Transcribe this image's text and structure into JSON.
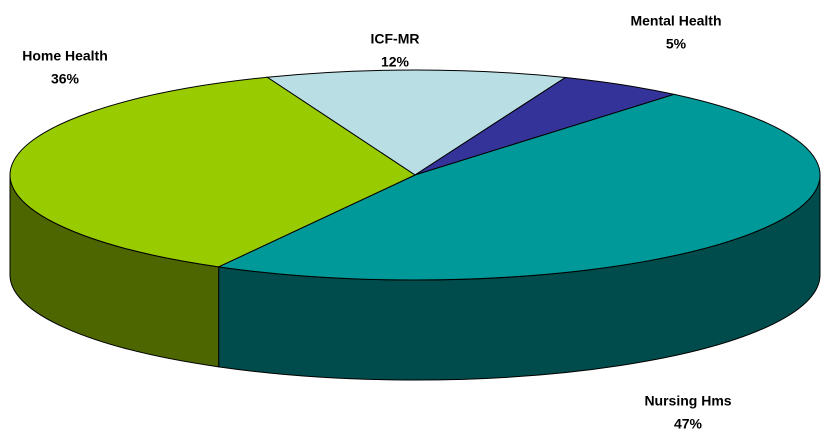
{
  "chart_data": {
    "type": "pie",
    "categories": [
      "ICF-MR",
      "Mental Health",
      "Nursing Hms",
      "Home Health"
    ],
    "values": [
      12,
      5,
      47,
      36
    ],
    "value_labels": [
      "12%",
      "5%",
      "47%",
      "36%"
    ],
    "colors": [
      "#b9dfe4",
      "#333399",
      "#009999",
      "#99cc00"
    ],
    "side_colors": [
      "#6f9fa3",
      "#1f1f66",
      "#004c4c",
      "#4d6600"
    ]
  }
}
